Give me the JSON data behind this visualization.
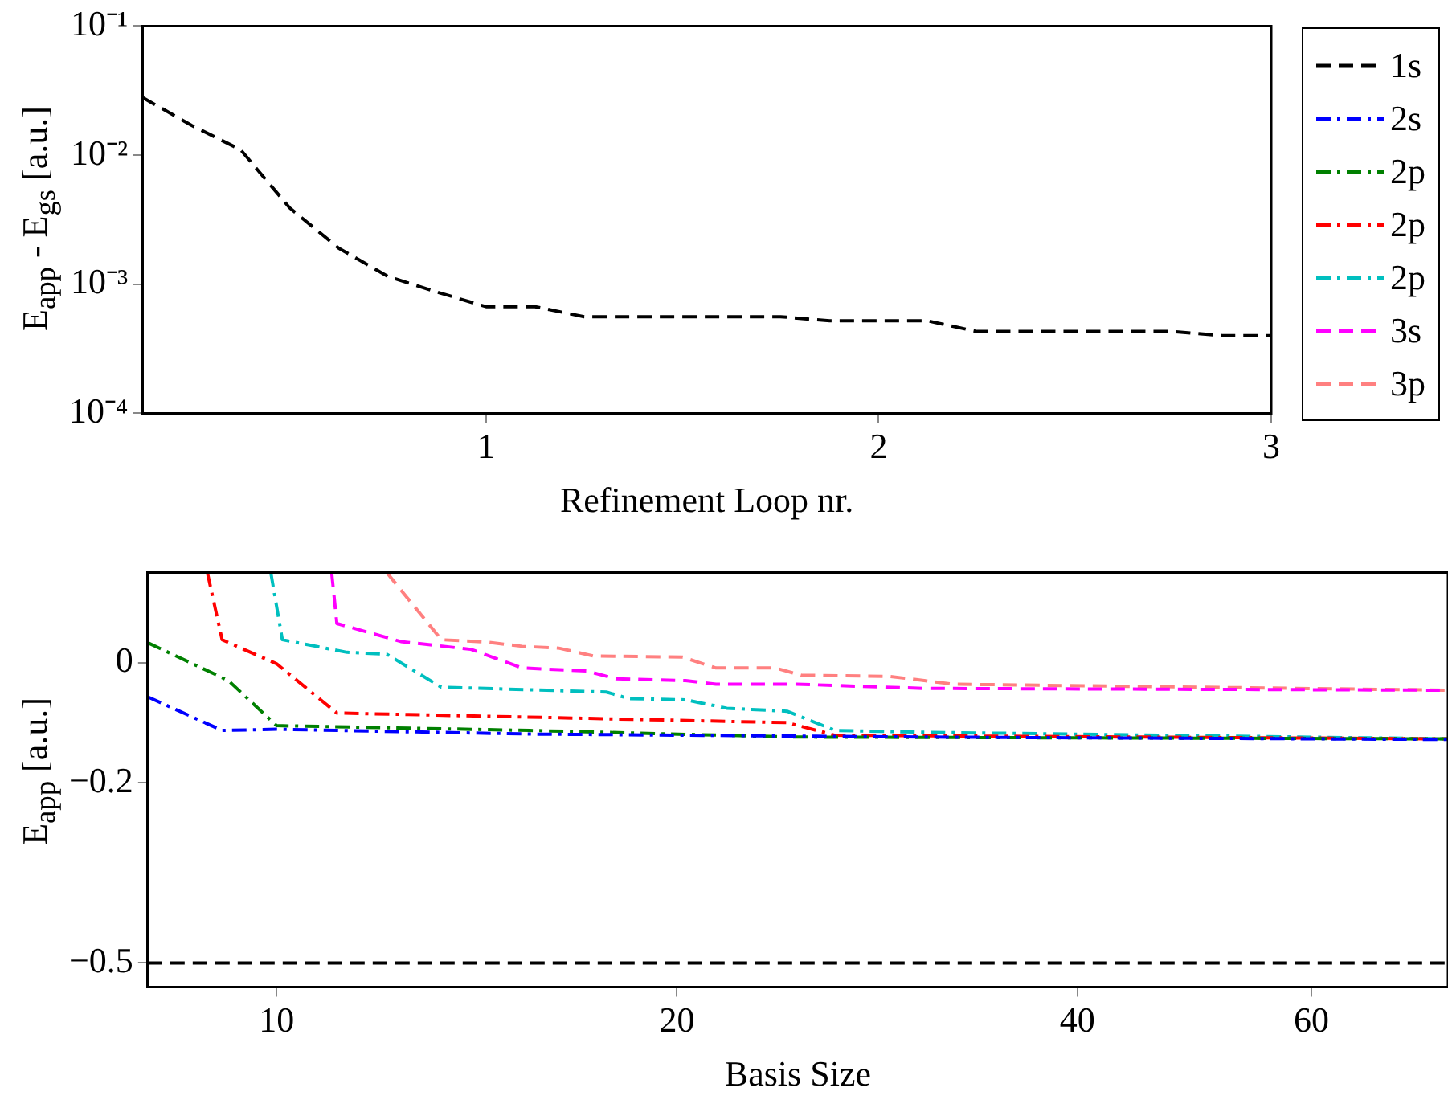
{
  "chart_data": [
    {
      "type": "line",
      "xlabel": "Refinement Loop nr.",
      "ylabel": "E$_{app}$ - E$_{gs}$ [a.u.]",
      "log": "y",
      "grid": false,
      "legend": false,
      "marker": "none",
      "xlim": [
        0.125,
        3
      ],
      "xticks": [
        1,
        2,
        3
      ],
      "ylim": [
        0.0001,
        0.1
      ],
      "yticks": [
        {
          "value": 0.0001,
          "label": "10⁻⁴"
        },
        {
          "value": 0.001,
          "label": "10⁻³"
        },
        {
          "value": 0.01,
          "label": "10⁻²"
        },
        {
          "value": 0.1,
          "label": "10⁻¹"
        }
      ],
      "series": [
        {
          "color": "#000000",
          "line_style": "dashed",
          "x": [
            0.125,
            0.25,
            0.375,
            0.5,
            0.625,
            0.75,
            0.875,
            1.0,
            1.125,
            1.25,
            1.375,
            1.5,
            1.625,
            1.75,
            1.875,
            2.0,
            2.125,
            2.25,
            2.375,
            2.5,
            2.625,
            2.75,
            2.875,
            3.0
          ],
          "values": [
            0.028,
            0.017,
            0.011,
            0.0039,
            0.0019,
            0.00115,
            0.00087,
            0.00067,
            0.00067,
            0.00056,
            0.00056,
            0.00056,
            0.00056,
            0.00056,
            0.00052,
            0.00052,
            0.00052,
            0.00043,
            0.00043,
            0.00043,
            0.00043,
            0.00043,
            0.0004,
            0.0004
          ]
        }
      ]
    },
    {
      "type": "line",
      "xlabel": "Basis Size",
      "ylabel": "E$_{app}$ [a.u.]",
      "log": "x",
      "grid": false,
      "legend": "right",
      "marker": "none",
      "xlim": [
        8,
        76
      ],
      "xticks": [
        10,
        20,
        40,
        60
      ],
      "ylim": [
        -0.54,
        0.15
      ],
      "yticks": [
        {
          "value": -0.5,
          "label": "−0.5"
        },
        {
          "value": -0.2,
          "label": "−0.2"
        },
        0
      ],
      "series": [
        {
          "name": "1s",
          "color": "#000000",
          "line_style": "dashed",
          "x": [
            8,
            76
          ],
          "values": [
            -0.5,
            -0.5
          ]
        },
        {
          "name": "2s",
          "color": "#0000ff",
          "line_style": "dashdot",
          "x": [
            8,
            9.1,
            10,
            15.5,
            30.7,
            76
          ],
          "values": [
            -0.057,
            -0.113,
            -0.111,
            -0.119,
            -0.124,
            -0.128
          ]
        },
        {
          "name": "2p",
          "color": "#008000",
          "line_style": "dashdot",
          "x": [
            8,
            9.2,
            10,
            15.5,
            24.6,
            76
          ],
          "values": [
            0.033,
            -0.03,
            -0.105,
            -0.113,
            -0.124,
            -0.127
          ]
        },
        {
          "name": "2p",
          "color": "#ff0000",
          "line_style": "dashdot",
          "x": [
            8.87,
            9.1,
            10,
            11.1,
            24.2,
            26.3,
            76
          ],
          "values": [
            0.15,
            0.038,
            -0.002,
            -0.084,
            -0.1,
            -0.121,
            -0.127
          ]
        },
        {
          "name": "2p",
          "color": "#00bfbf",
          "line_style": "dashdot",
          "x": [
            9.9,
            10.1,
            11.3,
            12.1,
            13.3,
            17.7,
            18.4,
            20.3,
            21.8,
            24.2,
            26.3,
            30.7,
            76
          ],
          "values": [
            0.15,
            0.038,
            0.017,
            0.014,
            -0.041,
            -0.049,
            -0.06,
            -0.062,
            -0.076,
            -0.081,
            -0.113,
            -0.116,
            -0.127
          ]
        },
        {
          "name": "3s",
          "color": "#ff00ff",
          "line_style": "dashed",
          "x": [
            11,
            11.1,
            12.4,
            14,
            15.3,
            17.1,
            18,
            20.3,
            21.4,
            24.6,
            30.7,
            76
          ],
          "values": [
            0.15,
            0.065,
            0.035,
            0.022,
            -0.009,
            -0.014,
            -0.027,
            -0.03,
            -0.036,
            -0.036,
            -0.043,
            -0.046
          ]
        },
        {
          "name": "3p",
          "color": "#ff8080",
          "line_style": "dashed",
          "x": [
            12.1,
            13.3,
            14.4,
            15.3,
            16.3,
            17.3,
            20.2,
            21.4,
            23.7,
            24.8,
            28.9,
            32.3,
            76
          ],
          "values": [
            0.15,
            0.038,
            0.034,
            0.027,
            0.024,
            0.011,
            0.009,
            -0.009,
            -0.009,
            -0.021,
            -0.023,
            -0.036,
            -0.046
          ]
        }
      ]
    }
  ]
}
